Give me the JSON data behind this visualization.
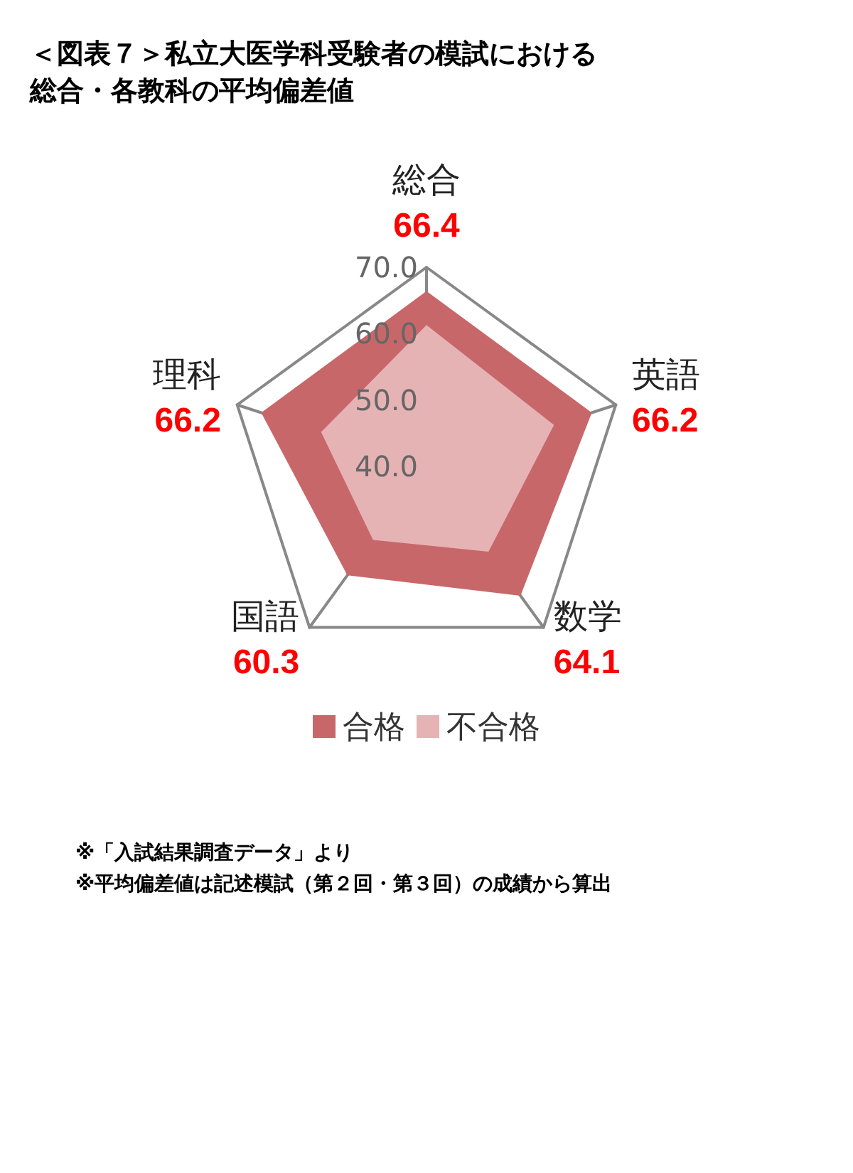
{
  "chart_data": {
    "type": "radar",
    "title": "＜図表７＞私立大医学科受験者の模試における総合・各教科の平均偏差値",
    "categories": [
      "総合",
      "英語",
      "数学",
      "国語",
      "理科"
    ],
    "ylim": [
      40,
      70
    ],
    "yticks": [
      {
        "value": 40,
        "label": "40.0"
      },
      {
        "value": 50,
        "label": "50.0"
      },
      {
        "value": 60,
        "label": "60.0"
      },
      {
        "value": 70,
        "label": "70.0"
      }
    ],
    "series": [
      {
        "name": "合格",
        "color": "#c8676a",
        "values": [
          66.4,
          66.2,
          64.1,
          60.3,
          66.2
        ],
        "value_labels": [
          "66.4",
          "66.2",
          "64.1",
          "60.3",
          "66.2"
        ]
      },
      {
        "name": "不合格",
        "color": "#e6b3b5",
        "values": [
          61.3,
          60.2,
          55.9,
          53.7,
          56.7
        ]
      }
    ],
    "grid": true,
    "legend": "bottom",
    "annotations": [
      "※「入試結果調査データ」より",
      "※平均偏差値は記述模試（第２回・第３回）の成績から算出"
    ]
  }
}
